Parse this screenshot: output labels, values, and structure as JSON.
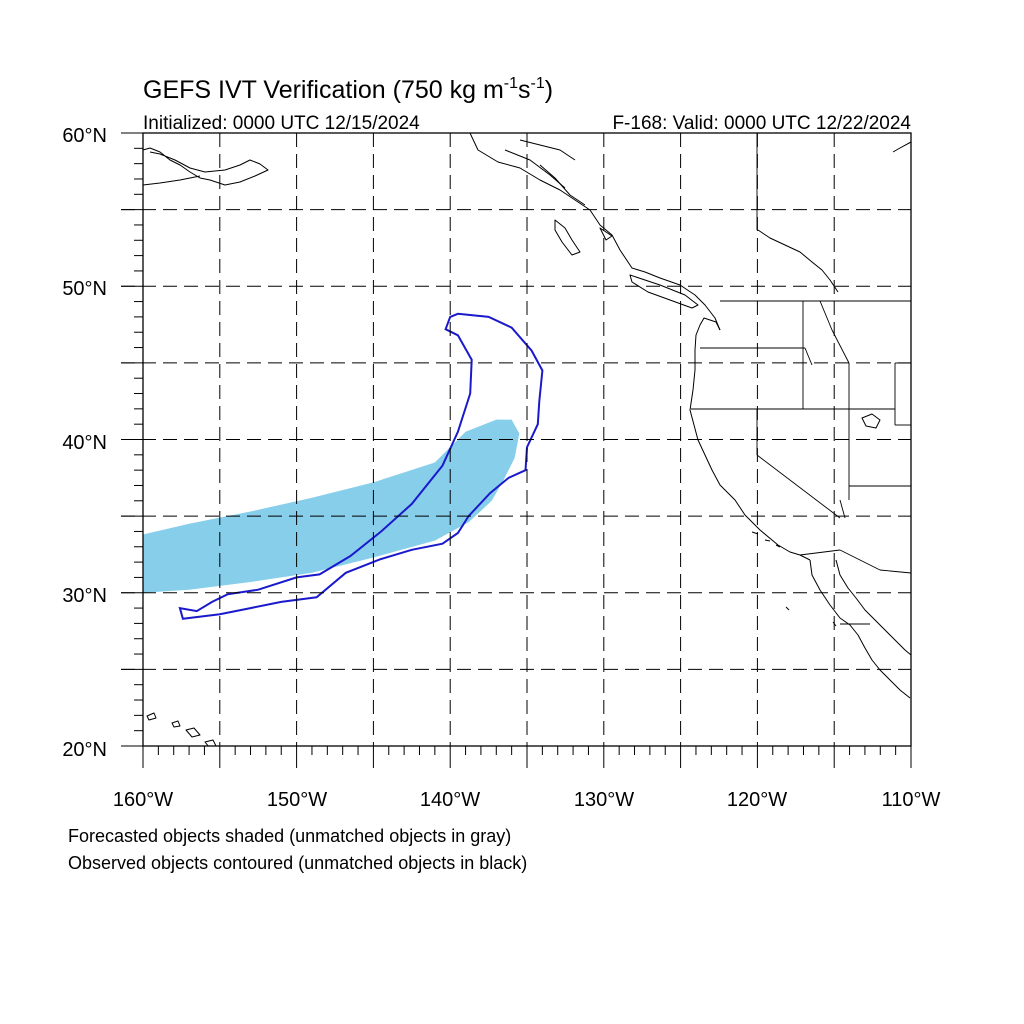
{
  "header": {
    "title_main": "GEFS IVT Verification (750 kg m",
    "title_exp1": "-1",
    "title_mid": "s",
    "title_exp2": "-1",
    "title_end": ")",
    "initialized": "Initialized: 0000 UTC 12/15/2024",
    "valid": "F-168: Valid: 0000 UTC 12/22/2024"
  },
  "map": {
    "lon_range": [
      -160,
      -110
    ],
    "lat_range": [
      20,
      60
    ],
    "lon_labels": [
      "160°W",
      "150°W",
      "140°W",
      "130°W",
      "120°W",
      "110°W"
    ],
    "lat_labels": [
      "20°N",
      "30°N",
      "40°N",
      "50°N",
      "60°N"
    ],
    "forecast_color": "#87ceeb",
    "observed_color": "#1a1acc",
    "forecast_object": [
      [
        -160,
        33.8
      ],
      [
        -157,
        34.5
      ],
      [
        -153,
        35.3
      ],
      [
        -149,
        36.2
      ],
      [
        -145,
        37.2
      ],
      [
        -141,
        38.5
      ],
      [
        -139,
        40.5
      ],
      [
        -137,
        41.3
      ],
      [
        -136,
        41.3
      ],
      [
        -135.5,
        40.4
      ],
      [
        -135.8,
        38.8
      ],
      [
        -136.5,
        37.4
      ],
      [
        -137.3,
        36.0
      ],
      [
        -138.8,
        34.6
      ],
      [
        -141,
        33.4
      ],
      [
        -145,
        32.3
      ],
      [
        -149,
        31.3
      ],
      [
        -153,
        30.7
      ],
      [
        -157,
        30.2
      ],
      [
        -160,
        30.0
      ]
    ],
    "observed_object": [
      [
        -140,
        48.0
      ],
      [
        -139.5,
        48.2
      ],
      [
        -137.5,
        48.0
      ],
      [
        -136,
        47.3
      ],
      [
        -134.7,
        45.8
      ],
      [
        -134,
        44.5
      ],
      [
        -134.2,
        42.5
      ],
      [
        -134.3,
        41.0
      ],
      [
        -135,
        39.5
      ],
      [
        -135.1,
        38.0
      ],
      [
        -136.2,
        37.5
      ],
      [
        -137.4,
        36.5
      ],
      [
        -138.8,
        35.0
      ],
      [
        -139.5,
        33.9
      ],
      [
        -140.5,
        33.2
      ],
      [
        -142.5,
        32.8
      ],
      [
        -144.5,
        32.2
      ],
      [
        -146.8,
        31.3
      ],
      [
        -148.7,
        29.7
      ],
      [
        -151,
        29.4
      ],
      [
        -153,
        29.0
      ],
      [
        -155,
        28.6
      ],
      [
        -157.4,
        28.3
      ],
      [
        -157.6,
        29.0
      ],
      [
        -156.5,
        28.8
      ],
      [
        -155.5,
        29.4
      ],
      [
        -154.5,
        29.9
      ],
      [
        -152.5,
        30.2
      ],
      [
        -150,
        31.0
      ],
      [
        -148.5,
        31.2
      ],
      [
        -146.5,
        32.4
      ],
      [
        -144.5,
        34.0
      ],
      [
        -142.5,
        35.8
      ],
      [
        -140.5,
        38.3
      ],
      [
        -139.5,
        40.5
      ],
      [
        -138.7,
        43.0
      ],
      [
        -138.6,
        45.2
      ],
      [
        -139.5,
        46.8
      ],
      [
        -140.3,
        47.2
      ]
    ]
  },
  "notes": {
    "line1": "Forecasted objects shaded (unmatched objects in gray)",
    "line2": "Observed objects contoured (unmatched objects in black)"
  }
}
